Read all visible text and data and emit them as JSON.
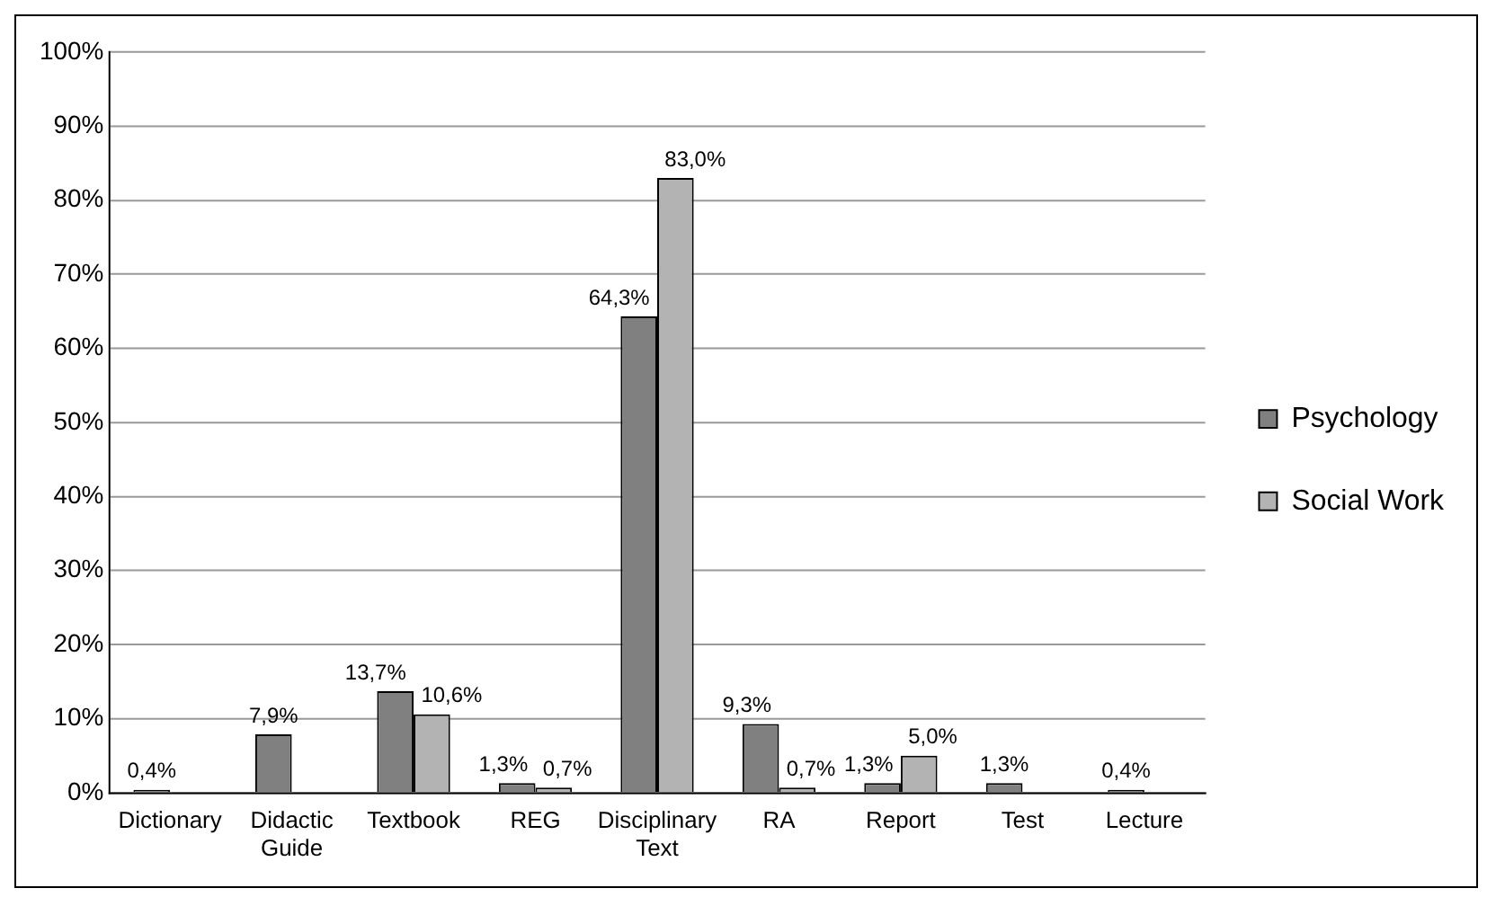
{
  "chart_data": {
    "type": "bar",
    "categories": [
      "Dictionary",
      "Didactic Guide",
      "Textbook",
      "REG",
      "Disciplinary Text",
      "RA",
      "Report",
      "Test",
      "Lecture"
    ],
    "series": [
      {
        "name": "Psychology",
        "color": "#808080",
        "values": [
          0.4,
          7.9,
          13.7,
          1.3,
          64.3,
          9.3,
          1.3,
          1.3,
          0.4
        ],
        "value_labels": [
          "0,4%",
          "7,9%",
          "13,7%",
          "1,3%",
          "64,3%",
          "9,3%",
          "1,3%",
          "1,3%",
          "0,4%"
        ]
      },
      {
        "name": "Social Work",
        "color": "#b3b3b3",
        "values": [
          null,
          null,
          10.6,
          0.7,
          83.0,
          0.7,
          5.0,
          null,
          null
        ],
        "value_labels": [
          null,
          null,
          "10,6%",
          "0,7%",
          "83,0%",
          "0,7%",
          "5,0%",
          null,
          null
        ]
      }
    ],
    "ylim": [
      0,
      100
    ],
    "yticks": [
      {
        "value": 0,
        "label": "0%"
      },
      {
        "value": 10,
        "label": "10%"
      },
      {
        "value": 20,
        "label": "20%"
      },
      {
        "value": 30,
        "label": "30%"
      },
      {
        "value": 40,
        "label": "40%"
      },
      {
        "value": 50,
        "label": "50%"
      },
      {
        "value": 60,
        "label": "60%"
      },
      {
        "value": 70,
        "label": "70%"
      },
      {
        "value": 80,
        "label": "80%"
      },
      {
        "value": 90,
        "label": "90%"
      },
      {
        "value": 100,
        "label": "100%"
      }
    ],
    "grid": "y",
    "legend": "right"
  }
}
